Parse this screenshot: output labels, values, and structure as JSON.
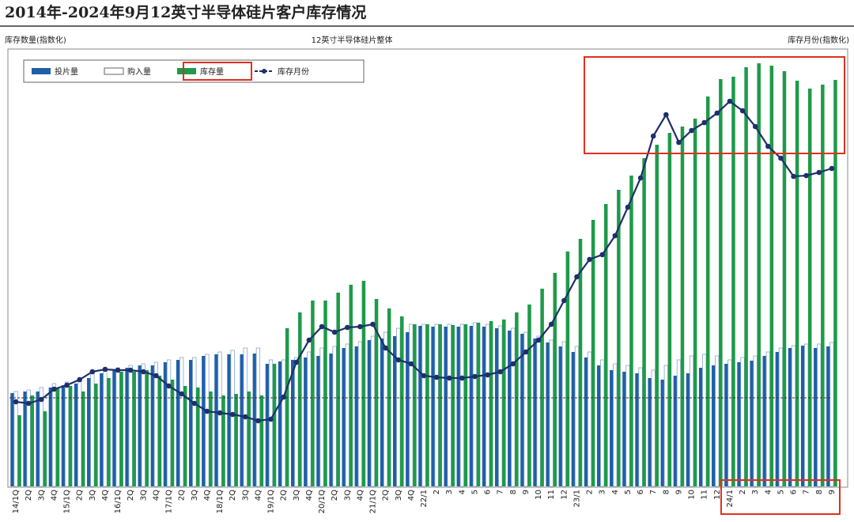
{
  "chart_data": {
    "type": "bar",
    "title": "2014年-2024年9月12英寸半导体硅片客户库存情况",
    "subtitle": "12英寸半导体硅片整体",
    "ylabel": "库存数量(指数化)",
    "y2label": "库存月份(指数化)",
    "categories": [
      "14/1Q",
      "2Q",
      "3Q",
      "4Q",
      "15/1Q",
      "2Q",
      "3Q",
      "4Q",
      "16/1Q",
      "2Q",
      "3Q",
      "4Q",
      "17/1Q",
      "2Q",
      "3Q",
      "4Q",
      "18/1Q",
      "2Q",
      "3Q",
      "4Q",
      "19/1Q",
      "2Q",
      "3Q",
      "4Q",
      "20/1Q",
      "2Q",
      "3Q",
      "4Q",
      "21/1Q",
      "2Q",
      "3Q",
      "4Q",
      "22/1",
      "2",
      "3",
      "4",
      "5",
      "6",
      "7",
      "8",
      "9",
      "10",
      "11",
      "12",
      "23/1",
      "2",
      "3",
      "4",
      "5",
      "6",
      "7",
      "8",
      "9",
      "10",
      "11",
      "12",
      "24/1",
      "2",
      "3",
      "4",
      "5",
      "6",
      "7",
      "8",
      "9"
    ],
    "ylim": [
      0,
      550
    ],
    "reference_line": 112,
    "series": [
      {
        "name": "投片量",
        "color": "#1f5fa8",
        "values": [
          118,
          120,
          120,
          125,
          128,
          130,
          137,
          143,
          147,
          150,
          153,
          153,
          157,
          160,
          160,
          165,
          167,
          167,
          167,
          168,
          155,
          158,
          160,
          163,
          165,
          168,
          175,
          177,
          185,
          187,
          190,
          195,
          203,
          202,
          202,
          202,
          203,
          202,
          200,
          197,
          193,
          187,
          182,
          177,
          170,
          163,
          153,
          147,
          145,
          143,
          137,
          135,
          140,
          143,
          150,
          153,
          155,
          157,
          159,
          165,
          170,
          175,
          178,
          175,
          177
        ]
      },
      {
        "name": "购入量",
        "color": "#ffffff",
        "values": [
          120,
          122,
          125,
          130,
          132,
          135,
          145,
          150,
          150,
          153,
          155,
          157,
          160,
          163,
          163,
          167,
          170,
          172,
          175,
          175,
          160,
          160,
          163,
          170,
          175,
          177,
          180,
          183,
          190,
          195,
          200,
          205,
          205,
          205,
          205,
          205,
          207,
          205,
          203,
          200,
          195,
          190,
          185,
          183,
          177,
          170,
          160,
          155,
          153,
          150,
          147,
          153,
          160,
          165,
          167,
          165,
          160,
          163,
          165,
          170,
          175,
          178,
          180,
          180,
          182
        ]
      },
      {
        "name": "库存量",
        "color": "#1e9a4a",
        "values": [
          90,
          115,
          95,
          125,
          127,
          120,
          130,
          137,
          145,
          145,
          147,
          140,
          135,
          127,
          125,
          120,
          115,
          117,
          120,
          115,
          155,
          200,
          220,
          235,
          235,
          245,
          255,
          260,
          237,
          225,
          215,
          205,
          205,
          205,
          204,
          205,
          207,
          209,
          211,
          220,
          230,
          250,
          270,
          297,
          313,
          337,
          357,
          375,
          393,
          415,
          432,
          447,
          455,
          465,
          493,
          515,
          518,
          530,
          535,
          532,
          525,
          513,
          503,
          508,
          514
        ]
      },
      {
        "name": "库存月份",
        "color": "#1f2f6b",
        "type": "line",
        "axis": "y2",
        "values": [
          107,
          105,
          110,
          123,
          128,
          135,
          145,
          148,
          147,
          147,
          145,
          140,
          127,
          117,
          105,
          95,
          93,
          91,
          88,
          83,
          85,
          113,
          157,
          185,
          202,
          195,
          201,
          202,
          205,
          175,
          160,
          155,
          140,
          138,
          137,
          137,
          139,
          141,
          145,
          155,
          170,
          185,
          205,
          235,
          265,
          287,
          293,
          317,
          353,
          390,
          443,
          470,
          435,
          450,
          460,
          472,
          487,
          475,
          455,
          430,
          415,
          392,
          393,
          397,
          402
        ]
      }
    ],
    "y2lim": [
      0,
      550
    ]
  }
}
